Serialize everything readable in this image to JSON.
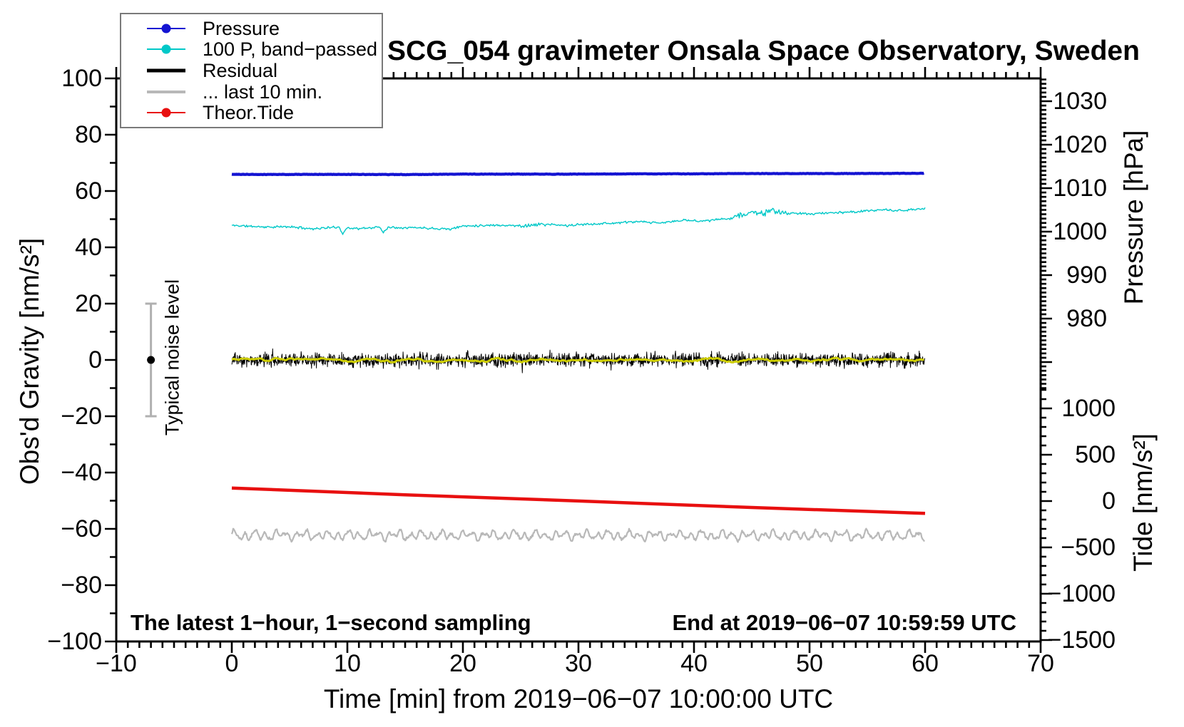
{
  "title": "SCG_054 gravimeter Onsala Space Observatory, Sweden",
  "annotations": {
    "sampling_note": "The latest 1−hour, 1−second sampling",
    "end_note": "End at 2019−06−07 10:59:59 UTC",
    "noise_label": "Typical noise level"
  },
  "axes": {
    "x": {
      "title": "Time [min] from 2019−06−07 10:00:00 UTC",
      "range": [
        -10,
        70
      ],
      "major_tick_labels": [
        -10,
        0,
        10,
        20,
        30,
        40,
        50,
        60,
        70
      ],
      "minor_step_min": 1
    },
    "y_left": {
      "title": "Obs'd Gravity [nm/s²]",
      "range": [
        -100,
        100
      ],
      "major_tick_labels": [
        100,
        80,
        60,
        40,
        20,
        0,
        -20,
        -40,
        -60,
        -80,
        -100
      ],
      "minor_step": 10
    },
    "y_right_pressure": {
      "title": "Pressure [hPa]",
      "major_tick_labels": [
        1030,
        1020,
        1010,
        1000,
        990,
        980
      ],
      "minor_step_hpa": 1
    },
    "y_right_tide": {
      "title": "Tide [nm/s²]",
      "major_tick_labels": [
        1000,
        500,
        0,
        -500,
        -1000,
        -1500
      ],
      "minor_step": 100
    }
  },
  "legend": {
    "items": [
      {
        "label": "Pressure",
        "color": "#1414d2",
        "marker": "dot",
        "sample_width": 2
      },
      {
        "label": "100 P, band−passed",
        "color": "#00c8c8",
        "marker": "dot",
        "sample_width": 2
      },
      {
        "label": "Residual",
        "color": "#000000",
        "marker": "none",
        "sample_width": 5
      },
      {
        "label": "... last 10 min.",
        "color": "#b8b8b8",
        "marker": "none",
        "sample_width": 4
      },
      {
        "label": "Theor.Tide",
        "color": "#e81010",
        "marker": "dot",
        "sample_width": 2
      }
    ]
  },
  "noise_bar": {
    "x_min": -7,
    "center_value": 0,
    "half_range": 20,
    "bar_color": "#b0b0b0",
    "dot_color": "#000000"
  },
  "chart_data": {
    "type": "line",
    "x_unit": "minutes from 2019-06-07 10:00:00 UTC",
    "x_data_range": [
      0,
      60
    ],
    "left_axis_unit": "nm/s²",
    "series": [
      {
        "name": "Pressure",
        "color": "#1414d2",
        "width": 4.2,
        "axis": "pressure",
        "approx_value_hpa": 1013.3,
        "keypoints_gravity_units": [
          [
            0,
            65.9
          ],
          [
            10,
            65.9
          ],
          [
            15,
            65.85
          ],
          [
            20,
            66.0
          ],
          [
            30,
            66.0
          ],
          [
            35,
            66.1
          ],
          [
            40,
            66.1
          ],
          [
            44,
            66.2
          ],
          [
            47,
            66.2
          ],
          [
            52,
            66.2
          ],
          [
            60,
            66.3
          ]
        ],
        "noise_amp": 0.14
      },
      {
        "name": "100 P, band-passed",
        "color": "#00c8c8",
        "width": 1.4,
        "axis": "left",
        "keypoints_gravity_units": [
          [
            0,
            47.8
          ],
          [
            3,
            47.2
          ],
          [
            5,
            47.3
          ],
          [
            7,
            46.6
          ],
          [
            9.3,
            47.2
          ],
          [
            9.6,
            44.8
          ],
          [
            10,
            47.0
          ],
          [
            11,
            46.6
          ],
          [
            12.8,
            47.2
          ],
          [
            13.1,
            45.3
          ],
          [
            13.5,
            47.1
          ],
          [
            16,
            47.0
          ],
          [
            19,
            46.5
          ],
          [
            20,
            47.6
          ],
          [
            23,
            47.9
          ],
          [
            25,
            47.6
          ],
          [
            27,
            48.2
          ],
          [
            29,
            47.7
          ],
          [
            31,
            48.3
          ],
          [
            33,
            48.6
          ],
          [
            35,
            49.1
          ],
          [
            37,
            48.6
          ],
          [
            39,
            49.6
          ],
          [
            41,
            49.4
          ],
          [
            43,
            50.2
          ],
          [
            44,
            51.4
          ],
          [
            45,
            52.4
          ],
          [
            46,
            52.2
          ],
          [
            47,
            52.9
          ],
          [
            48,
            52.1
          ],
          [
            50,
            51.9
          ],
          [
            52,
            52.3
          ],
          [
            54,
            52.6
          ],
          [
            56,
            53.3
          ],
          [
            58,
            53.0
          ],
          [
            60,
            53.8
          ]
        ],
        "noise_amp": 0.5,
        "noise_burst_windows": [
          [
            43.5,
            48.2
          ],
          [
            24.5,
            27.5
          ]
        ]
      },
      {
        "name": "Residual",
        "color": "#000000",
        "width": 1,
        "axis": "left",
        "mean": 0,
        "noise_sd": 1.8,
        "spike_range": [
          -7,
          7
        ]
      },
      {
        "name": "Residual smoothed",
        "color": "#cdcd00",
        "width": 3,
        "axis": "left",
        "mean": 0,
        "amplitude": 0.8,
        "in_legend": false
      },
      {
        "name": "... last 10 min.",
        "color": "#b8b8b8",
        "width": 2.2,
        "axis": "left",
        "mean": -62.3,
        "amplitude": 2.2,
        "period_min": 0.9
      },
      {
        "name": "Theor.Tide",
        "color": "#e81010",
        "width": 4.5,
        "axis": "left",
        "keypoints_gravity_units": [
          [
            0,
            -45.5
          ],
          [
            15,
            -47.9
          ],
          [
            30,
            -50.1
          ],
          [
            45,
            -52.4
          ],
          [
            60,
            -54.5
          ]
        ],
        "tide_axis_units": [
          [
            0,
            140
          ],
          [
            60,
            -140
          ]
        ]
      }
    ]
  }
}
